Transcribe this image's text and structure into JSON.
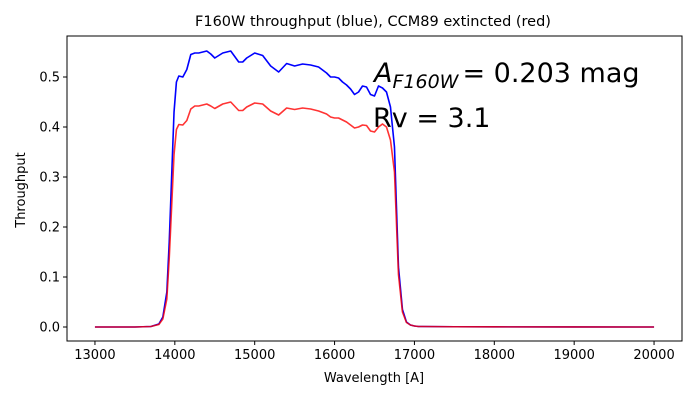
{
  "chart_data": {
    "type": "line",
    "title": "F160W throughput (blue), CCM89 extincted (red)",
    "xlabel": "Wavelength [A]",
    "ylabel": "Throughput",
    "xlim": [
      12650,
      20350
    ],
    "ylim": [
      -0.028,
      0.582
    ],
    "xticks": [
      13000,
      14000,
      15000,
      16000,
      17000,
      18000,
      19000,
      20000
    ],
    "xtick_labels": [
      "13000",
      "14000",
      "15000",
      "16000",
      "17000",
      "18000",
      "19000",
      "20000"
    ],
    "yticks": [
      0.0,
      0.1,
      0.2,
      0.3,
      0.4,
      0.5
    ],
    "ytick_labels": [
      "0.0",
      "0.1",
      "0.2",
      "0.3",
      "0.4",
      "0.5"
    ],
    "grid": false,
    "annotations": [
      {
        "id": "extinction",
        "main": "A",
        "sub": "F160W",
        "rest": "= 0.203 mag"
      },
      {
        "id": "rv",
        "text": "Rv = 3.1"
      }
    ],
    "series": [
      {
        "color": "#0000ff",
        "x": [
          13000,
          13500,
          13700,
          13800,
          13850,
          13900,
          13930,
          13960,
          13990,
          14020,
          14050,
          14100,
          14150,
          14200,
          14250,
          14300,
          14400,
          14450,
          14500,
          14600,
          14700,
          14800,
          14850,
          14900,
          15000,
          15100,
          15200,
          15300,
          15400,
          15500,
          15600,
          15700,
          15800,
          15900,
          15950,
          16000,
          16050,
          16100,
          16150,
          16200,
          16250,
          16300,
          16350,
          16400,
          16450,
          16500,
          16550,
          16600,
          16650,
          16700,
          16750,
          16800,
          16850,
          16900,
          16950,
          17000,
          17050,
          17100,
          17500,
          18000,
          19000,
          20000
        ],
        "y": [
          0.0,
          0.0,
          0.001,
          0.006,
          0.02,
          0.07,
          0.17,
          0.3,
          0.43,
          0.49,
          0.502,
          0.5,
          0.515,
          0.545,
          0.548,
          0.548,
          0.552,
          0.546,
          0.538,
          0.548,
          0.552,
          0.53,
          0.53,
          0.538,
          0.548,
          0.543,
          0.522,
          0.51,
          0.527,
          0.522,
          0.526,
          0.524,
          0.52,
          0.508,
          0.5,
          0.5,
          0.498,
          0.49,
          0.484,
          0.476,
          0.465,
          0.47,
          0.482,
          0.48,
          0.465,
          0.462,
          0.482,
          0.478,
          0.47,
          0.44,
          0.36,
          0.12,
          0.035,
          0.01,
          0.004,
          0.002,
          0.001,
          0.001,
          0.0005,
          0.0003,
          0.0001,
          0.0
        ]
      },
      {
        "color": "#ff0000",
        "x": [
          13000,
          13500,
          13700,
          13800,
          13850,
          13900,
          13930,
          13960,
          13990,
          14020,
          14050,
          14100,
          14150,
          14200,
          14250,
          14300,
          14400,
          14450,
          14500,
          14600,
          14700,
          14800,
          14850,
          14900,
          15000,
          15100,
          15200,
          15300,
          15400,
          15500,
          15600,
          15700,
          15800,
          15900,
          15950,
          16000,
          16050,
          16100,
          16150,
          16200,
          16250,
          16300,
          16350,
          16400,
          16450,
          16500,
          16550,
          16600,
          16650,
          16700,
          16750,
          16800,
          16850,
          16900,
          16950,
          17000,
          17050,
          17100,
          17500,
          18000,
          19000,
          20000
        ],
        "y": [
          0.0,
          0.0,
          0.001,
          0.005,
          0.016,
          0.056,
          0.137,
          0.24,
          0.345,
          0.395,
          0.405,
          0.404,
          0.413,
          0.436,
          0.442,
          0.442,
          0.446,
          0.442,
          0.437,
          0.446,
          0.45,
          0.433,
          0.433,
          0.44,
          0.448,
          0.446,
          0.432,
          0.424,
          0.438,
          0.435,
          0.438,
          0.436,
          0.432,
          0.426,
          0.42,
          0.418,
          0.418,
          0.414,
          0.41,
          0.404,
          0.398,
          0.4,
          0.404,
          0.403,
          0.392,
          0.39,
          0.4,
          0.406,
          0.4,
          0.374,
          0.31,
          0.105,
          0.03,
          0.009,
          0.004,
          0.002,
          0.001,
          0.001,
          0.0005,
          0.0003,
          0.0001,
          0.0
        ]
      }
    ]
  }
}
